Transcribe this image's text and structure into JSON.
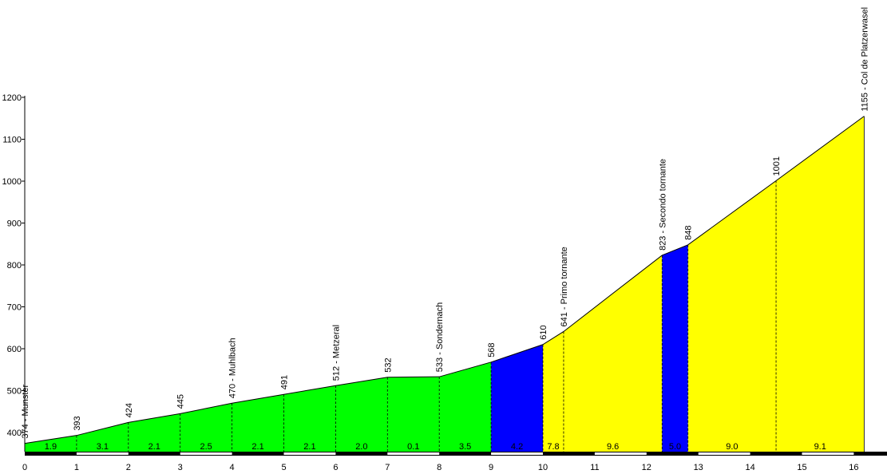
{
  "chart_data": {
    "type": "area",
    "title": "",
    "xlabel": "",
    "ylabel": "",
    "xlim": [
      0,
      16
    ],
    "ylim": [
      350,
      1200
    ],
    "x_ticks": [
      "0",
      "1",
      "2",
      "3",
      "4",
      "5",
      "6",
      "7",
      "8",
      "9",
      "10",
      "11",
      "12",
      "13",
      "14",
      "15",
      "16"
    ],
    "y_ticks": [
      "400",
      "500",
      "600",
      "700",
      "800",
      "900",
      "1000",
      "1100",
      "1200"
    ],
    "colors": {
      "easy": "#00ff00",
      "hard": "#0000ff",
      "steep": "#ffff00"
    },
    "points": [
      {
        "x": 0.0,
        "y": 374,
        "label": "374 - Munster"
      },
      {
        "x": 1.0,
        "y": 393,
        "label": "393"
      },
      {
        "x": 2.0,
        "y": 424,
        "label": "424"
      },
      {
        "x": 3.0,
        "y": 445,
        "label": "445"
      },
      {
        "x": 4.0,
        "y": 470,
        "label": "470 - Muhlbach"
      },
      {
        "x": 5.0,
        "y": 491,
        "label": "491"
      },
      {
        "x": 6.0,
        "y": 512,
        "label": "512 - Metzeral"
      },
      {
        "x": 7.0,
        "y": 532,
        "label": "532"
      },
      {
        "x": 8.0,
        "y": 533,
        "label": "533 - Sondernach"
      },
      {
        "x": 9.0,
        "y": 568,
        "label": "568"
      },
      {
        "x": 10.0,
        "y": 610,
        "label": "610"
      },
      {
        "x": 10.4,
        "y": 641,
        "label": "641 - Primo tornante"
      },
      {
        "x": 12.3,
        "y": 823,
        "label": "823 - Secondo tornante"
      },
      {
        "x": 12.8,
        "y": 848,
        "label": "848"
      },
      {
        "x": 14.5,
        "y": 1001,
        "label": "1001"
      },
      {
        "x": 16.2,
        "y": 1155,
        "label": "1155 - Col de Platzerwasel"
      }
    ],
    "segments": [
      {
        "from": 0.0,
        "to": 1.0,
        "gradient": "1.9",
        "color": "easy"
      },
      {
        "from": 1.0,
        "to": 2.0,
        "gradient": "3.1",
        "color": "easy"
      },
      {
        "from": 2.0,
        "to": 3.0,
        "gradient": "2.1",
        "color": "easy"
      },
      {
        "from": 3.0,
        "to": 4.0,
        "gradient": "2.5",
        "color": "easy"
      },
      {
        "from": 4.0,
        "to": 5.0,
        "gradient": "2.1",
        "color": "easy"
      },
      {
        "from": 5.0,
        "to": 6.0,
        "gradient": "2.1",
        "color": "easy"
      },
      {
        "from": 6.0,
        "to": 7.0,
        "gradient": "2.0",
        "color": "easy"
      },
      {
        "from": 7.0,
        "to": 8.0,
        "gradient": "0.1",
        "color": "easy"
      },
      {
        "from": 8.0,
        "to": 9.0,
        "gradient": "3.5",
        "color": "easy"
      },
      {
        "from": 9.0,
        "to": 10.0,
        "gradient": "4.2",
        "color": "hard"
      },
      {
        "from": 10.0,
        "to": 10.4,
        "gradient": "7.8",
        "color": "steep"
      },
      {
        "from": 10.4,
        "to": 12.3,
        "gradient": "9.6",
        "color": "steep"
      },
      {
        "from": 12.3,
        "to": 12.8,
        "gradient": "5.0",
        "color": "hard"
      },
      {
        "from": 12.8,
        "to": 14.5,
        "gradient": "9.0",
        "color": "steep"
      },
      {
        "from": 14.5,
        "to": 16.2,
        "gradient": "9.1",
        "color": "steep"
      }
    ]
  }
}
